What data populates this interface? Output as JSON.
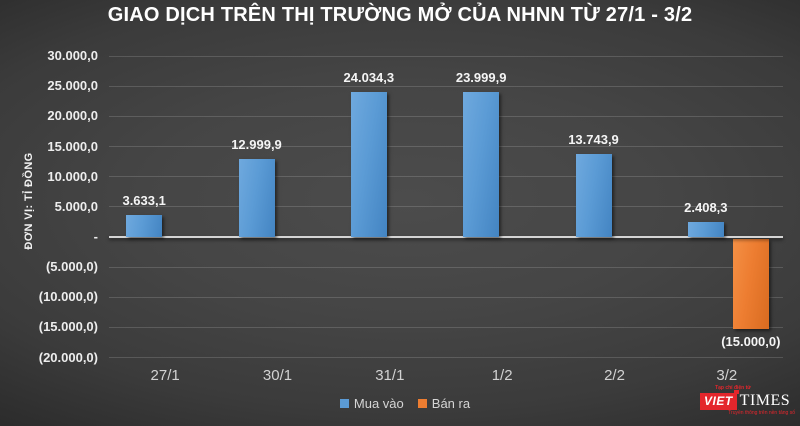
{
  "chart_data": {
    "type": "bar",
    "title": "GIAO DỊCH TRÊN THỊ TRƯỜNG MỞ CỦA NHNN TỪ 27/1 - 3/2",
    "ylabel": "ĐƠN VỊ: TỈ ĐỒNG",
    "categories": [
      "27/1",
      "30/1",
      "31/1",
      "1/2",
      "2/2",
      "3/2"
    ],
    "series": [
      {
        "name": "Mua vào",
        "color": "#5b9bd5",
        "values": [
          3633.1,
          12999.9,
          24034.3,
          23999.9,
          13743.9,
          2408.3
        ],
        "labels": [
          "3.633,1",
          "12.999,9",
          "24.034,3",
          "23.999,9",
          "13.743,9",
          "2.408,3"
        ]
      },
      {
        "name": "Bán ra",
        "color": "#ed7d31",
        "values": [
          0,
          0,
          0,
          0,
          0,
          -15000.0
        ],
        "labels": [
          "",
          "",
          "",
          "",
          "",
          "(15.000,0)"
        ]
      }
    ],
    "ylim": [
      -20000,
      30000
    ],
    "yticks": {
      "values": [
        30000,
        25000,
        20000,
        15000,
        10000,
        5000,
        0,
        -5000,
        -10000,
        -15000,
        -20000
      ],
      "labels": [
        "30.000,0",
        "25.000,0",
        "20.000,0",
        "15.000,0",
        "10.000,0",
        "5.000,0",
        "-",
        "(5.000,0)",
        "(10.000,0)",
        "(15.000,0)",
        "(20.000,0)"
      ]
    },
    "grid": true,
    "legend_position": "bottom"
  },
  "legend": {
    "items": [
      {
        "label": "Mua vào",
        "color": "#5b9bd5"
      },
      {
        "label": "Bán ra",
        "color": "#ed7d31"
      }
    ]
  },
  "logo": {
    "tagline_top": "Tạp chí điện tử",
    "name_red": "VIET",
    "name_white": "TIMES",
    "tagline_bottom": "Truyền thông trên nền tảng số",
    "color": "#e4262c"
  }
}
